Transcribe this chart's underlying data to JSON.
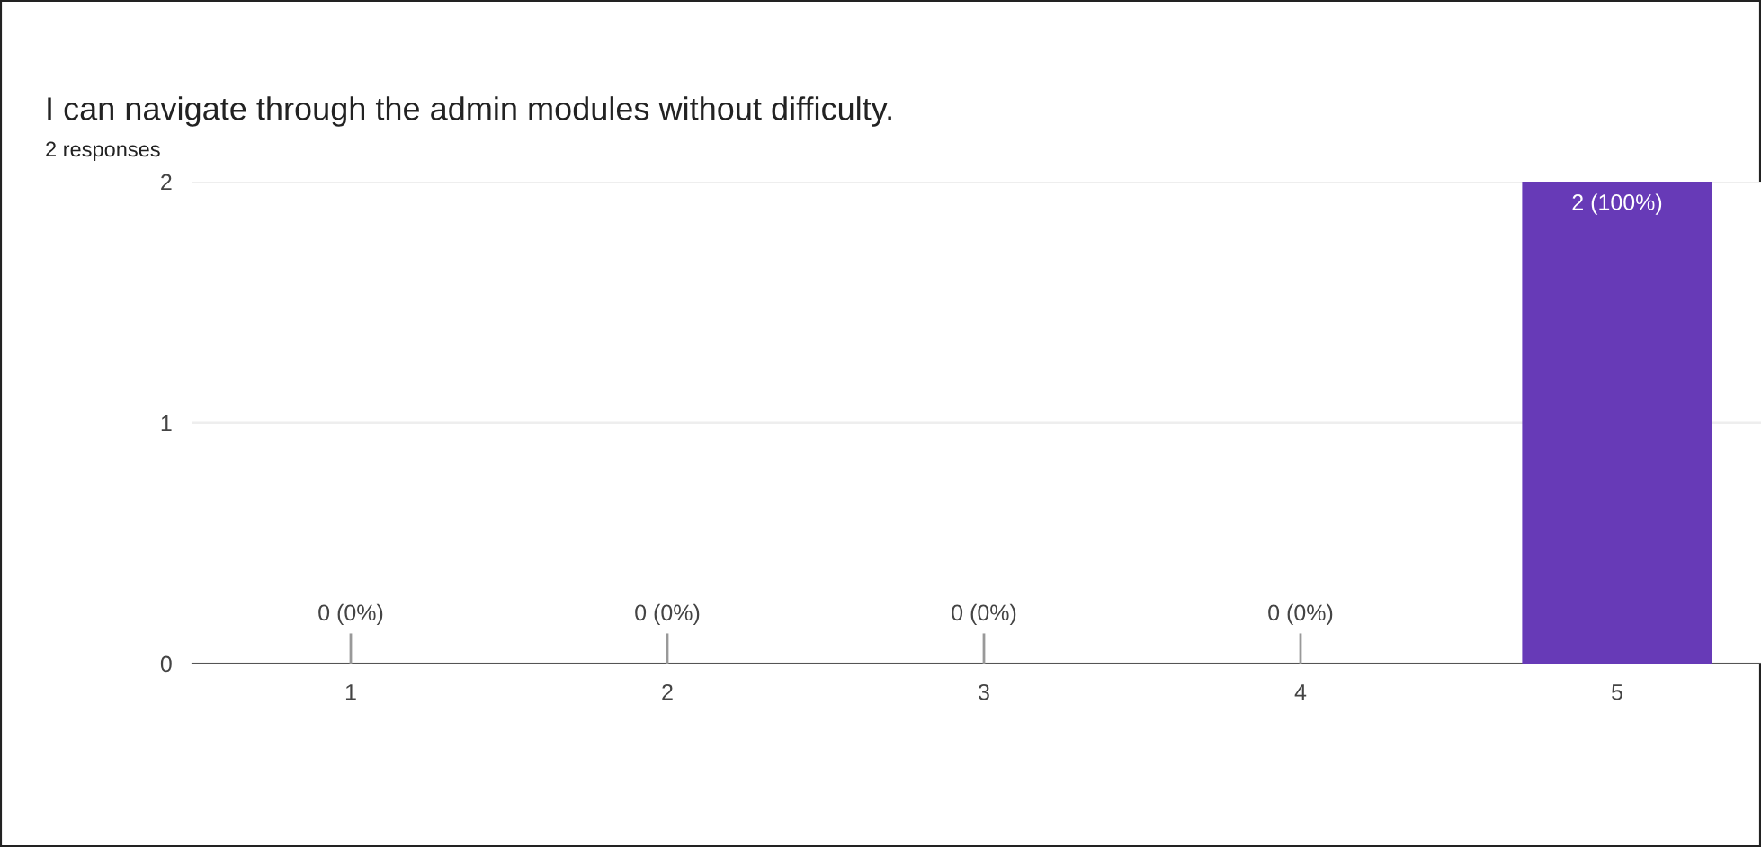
{
  "chart_data": {
    "type": "bar",
    "title": "I can navigate through the admin modules without difficulty.",
    "subtitle": "2 responses",
    "categories": [
      "1",
      "2",
      "3",
      "4",
      "5"
    ],
    "values": [
      0,
      0,
      0,
      0,
      2
    ],
    "value_labels": [
      "0 (0%)",
      "0 (0%)",
      "0 (0%)",
      "0 (0%)",
      "2 (100%)"
    ],
    "color": "#673ab7",
    "ylim": [
      0,
      2
    ],
    "yticks": [
      0,
      1,
      2
    ],
    "grid": "y",
    "legend": false
  }
}
